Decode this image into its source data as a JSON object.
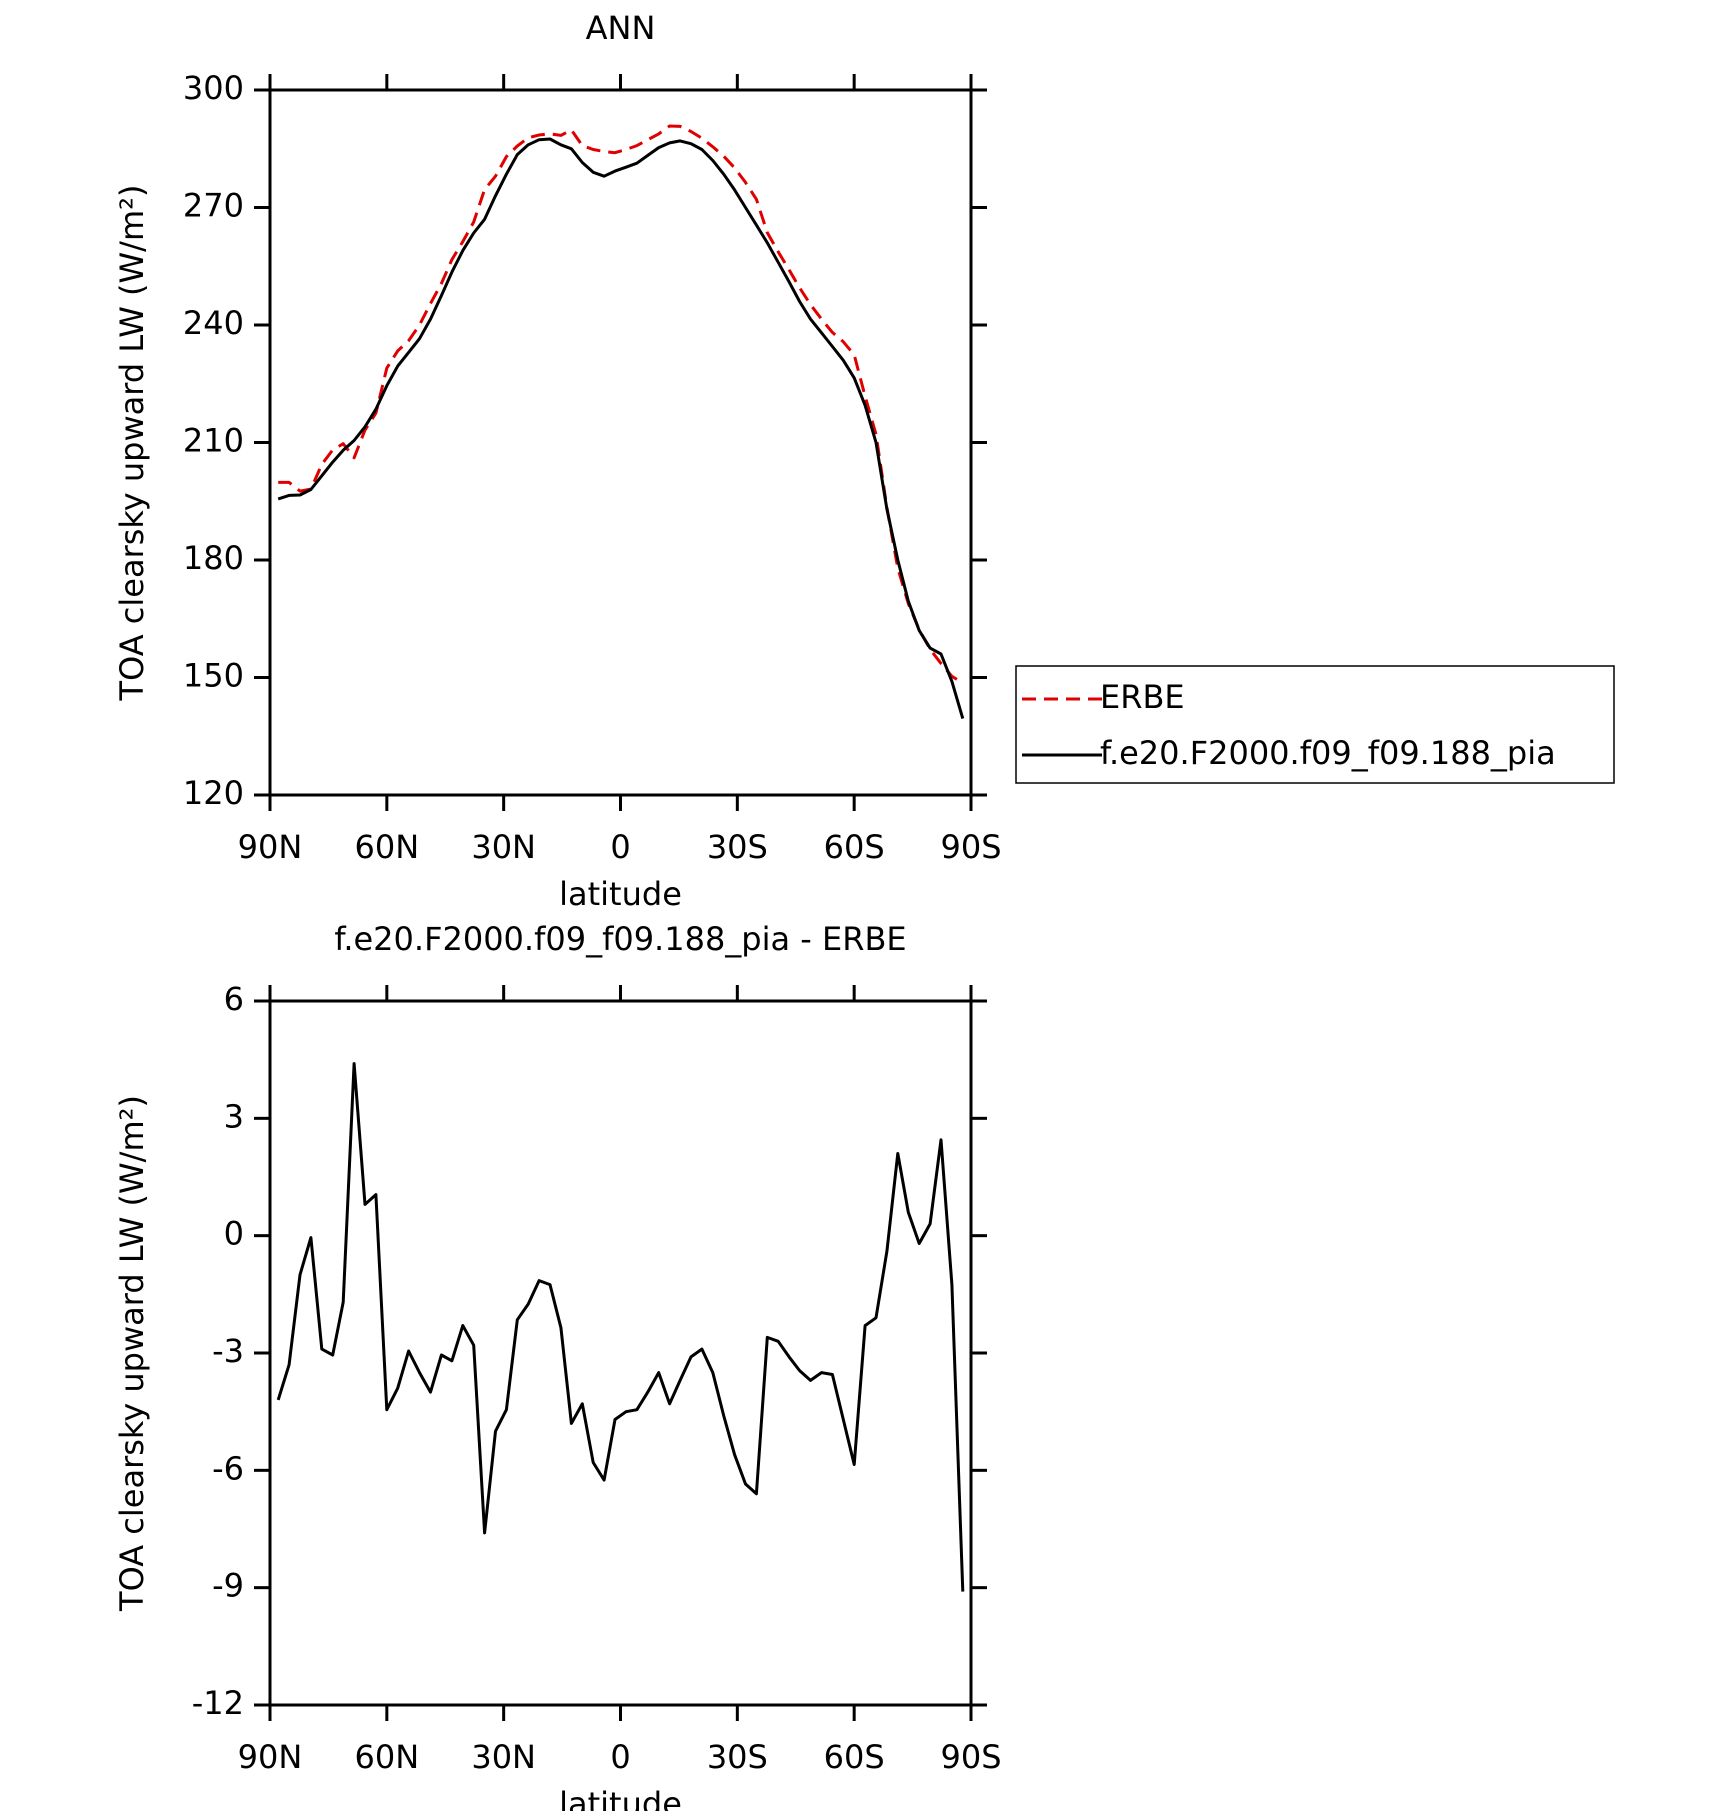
{
  "chart_data": [
    {
      "type": "line",
      "title": "ANN",
      "xlabel": "latitude",
      "ylabel": "TOA clearsky upward LW (W/m²)",
      "x": [
        87.9,
        85.1,
        82.3,
        79.5,
        76.7,
        73.9,
        71.2,
        68.4,
        65.6,
        62.8,
        60.0,
        57.2,
        54.4,
        51.6,
        48.8,
        46.0,
        43.3,
        40.5,
        37.7,
        34.9,
        32.1,
        29.3,
        26.5,
        23.7,
        20.9,
        18.1,
        15.3,
        12.6,
        9.8,
        7.0,
        4.2,
        1.4,
        -1.4,
        -4.2,
        -7.0,
        -9.8,
        -12.6,
        -15.3,
        -18.1,
        -20.9,
        -23.7,
        -26.5,
        -29.3,
        -32.1,
        -34.9,
        -37.7,
        -40.5,
        -43.3,
        -46.0,
        -48.8,
        -51.6,
        -54.4,
        -57.2,
        -60.0,
        -62.8,
        -65.6,
        -68.4,
        -71.2,
        -73.9,
        -76.7,
        -79.5,
        -82.3,
        -85.1,
        -87.9
      ],
      "series": [
        {
          "name": "ERBE",
          "color": "#e00000",
          "line_style": "dashed",
          "values": [
            199.8,
            199.8,
            197.6,
            198.1,
            204.4,
            208.1,
            209.7,
            206.1,
            213.2,
            217.5,
            229.0,
            233.4,
            236.0,
            240.0,
            245.5,
            250.6,
            256.7,
            261.3,
            266.3,
            274.6,
            278.0,
            283.0,
            285.7,
            287.8,
            288.5,
            288.8,
            288.4,
            289.8,
            285.8,
            284.8,
            284.3,
            284.0,
            284.8,
            285.8,
            287.3,
            288.8,
            290.8,
            290.7,
            289.4,
            287.7,
            285.5,
            283.1,
            280.1,
            276.4,
            272.1,
            263.6,
            258.7,
            254.1,
            249.5,
            245.2,
            241.5,
            238.1,
            235.7,
            232.4,
            221.8,
            212.1,
            193.4,
            177.9,
            168.9,
            162.2,
            157.2,
            153.6,
            150.3,
            148.6
          ]
        },
        {
          "name": "f.e20.F2000.f09_f09.188_pia",
          "color": "#000000",
          "line_style": "solid",
          "values": [
            195.6,
            196.5,
            196.6,
            198.0,
            201.5,
            205.0,
            208.0,
            210.5,
            214.0,
            218.5,
            224.5,
            229.5,
            233.0,
            236.5,
            241.5,
            247.5,
            253.5,
            259.0,
            263.5,
            267.0,
            273.0,
            278.5,
            283.5,
            286.0,
            287.3,
            287.5,
            286.0,
            285.0,
            281.5,
            279.0,
            278.0,
            279.3,
            280.3,
            281.3,
            283.3,
            285.3,
            286.5,
            287.0,
            286.3,
            284.8,
            282.0,
            278.5,
            274.5,
            270.0,
            265.5,
            261.0,
            256.0,
            251.0,
            246.0,
            241.5,
            238.0,
            234.5,
            231.0,
            226.5,
            219.5,
            210.0,
            193.0,
            180.0,
            169.5,
            162.0,
            157.5,
            156.0,
            149.0,
            139.5
          ]
        }
      ],
      "xlim": [
        90,
        -90
      ],
      "xticks": [
        {
          "value": 90,
          "label": "90N"
        },
        {
          "value": 60,
          "label": "60N"
        },
        {
          "value": 30,
          "label": "30N"
        },
        0,
        {
          "value": -30,
          "label": "30S"
        },
        {
          "value": -60,
          "label": "60S"
        },
        {
          "value": -90,
          "label": "90S"
        }
      ],
      "ylim": [
        120,
        300
      ],
      "yticks": [
        120,
        150,
        180,
        210,
        240,
        270,
        300
      ],
      "legend": "right"
    },
    {
      "type": "line",
      "title": "f.e20.F2000.f09_f09.188_pia - ERBE",
      "xlabel": "latitude",
      "ylabel": "TOA clearsky upward LW (W/m²)",
      "x": [
        87.9,
        85.1,
        82.3,
        79.5,
        76.7,
        73.9,
        71.2,
        68.4,
        65.6,
        62.8,
        60.0,
        57.2,
        54.4,
        51.6,
        48.8,
        46.0,
        43.3,
        40.5,
        37.7,
        34.9,
        32.1,
        29.3,
        26.5,
        23.7,
        20.9,
        18.1,
        15.3,
        12.6,
        9.8,
        7.0,
        4.2,
        1.4,
        -1.4,
        -4.2,
        -7.0,
        -9.8,
        -12.6,
        -15.3,
        -18.1,
        -20.9,
        -23.7,
        -26.5,
        -29.3,
        -32.1,
        -34.9,
        -37.7,
        -40.5,
        -43.3,
        -46.0,
        -48.8,
        -51.6,
        -54.4,
        -57.2,
        -60.0,
        -62.8,
        -65.6,
        -68.4,
        -71.2,
        -73.9,
        -76.7,
        -79.5,
        -82.3,
        -85.1,
        -87.9
      ],
      "series": [
        {
          "color": "#000000",
          "line_style": "solid",
          "values": [
            -4.2,
            -3.3,
            -1.0,
            -0.05,
            -2.9,
            -3.05,
            -1.7,
            4.4,
            0.8,
            1.05,
            -4.45,
            -3.9,
            -2.95,
            -3.5,
            -4.0,
            -3.05,
            -3.2,
            -2.3,
            -2.8,
            -7.6,
            -5.0,
            -4.45,
            -2.15,
            -1.75,
            -1.15,
            -1.25,
            -2.35,
            -4.8,
            -4.3,
            -5.8,
            -6.25,
            -4.7,
            -4.5,
            -4.45,
            -4.0,
            -3.5,
            -4.3,
            -3.7,
            -3.1,
            -2.9,
            -3.5,
            -4.6,
            -5.6,
            -6.35,
            -6.6,
            -2.6,
            -2.7,
            -3.1,
            -3.45,
            -3.7,
            -3.5,
            -3.55,
            -4.7,
            -5.85,
            -2.3,
            -2.1,
            -0.4,
            2.1,
            0.6,
            -0.2,
            0.3,
            2.45,
            -1.25,
            -9.1
          ]
        }
      ],
      "xlim": [
        90,
        -90
      ],
      "xticks": [
        {
          "value": 90,
          "label": "90N"
        },
        {
          "value": 60,
          "label": "60N"
        },
        {
          "value": 30,
          "label": "30N"
        },
        0,
        {
          "value": -30,
          "label": "30S"
        },
        {
          "value": -60,
          "label": "60S"
        },
        {
          "value": -90,
          "label": "90S"
        }
      ],
      "ylim": [
        -12,
        6
      ],
      "yticks": [
        -12,
        -9,
        -6,
        -3,
        0,
        3,
        6
      ]
    }
  ]
}
